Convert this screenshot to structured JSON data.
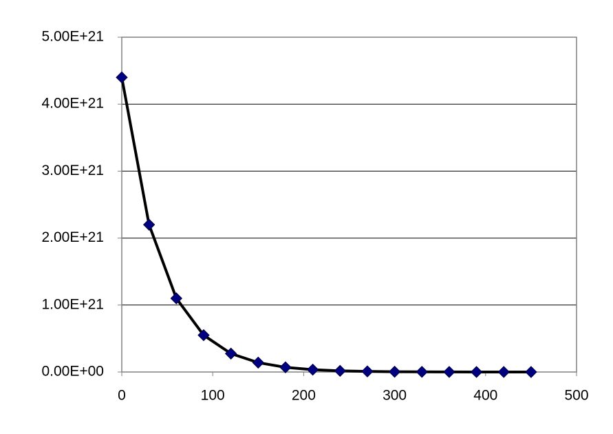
{
  "chart_data": {
    "type": "scatter",
    "x": [
      0,
      30,
      60,
      90,
      120,
      150,
      180,
      210,
      240,
      270,
      300,
      330,
      360,
      390,
      420,
      450
    ],
    "series": [
      {
        "color": "#000080",
        "line_color": "#000000",
        "values": [
          4.4e+21,
          2.2e+21,
          1.1e+21,
          5.5e+20,
          2.75e+20,
          1.4e+20,
          7e+19,
          3.5e+19,
          1.7e+19,
          9e+18,
          4e+18,
          2e+18,
          1e+18,
          5e+17,
          3e+17,
          1e+17
        ]
      }
    ],
    "xlim": [
      0,
      500
    ],
    "xticks": [
      0,
      100,
      200,
      300,
      400,
      500
    ],
    "ylim": [
      0,
      5e+21
    ],
    "yticks": [
      {
        "value": 0,
        "label": "0.00E+00"
      },
      {
        "value": 1e+21,
        "label": "1.00E+21"
      },
      {
        "value": 2e+21,
        "label": "2.00E+21"
      },
      {
        "value": 3e+21,
        "label": "3.00E+21"
      },
      {
        "value": 4e+21,
        "label": "4.00E+21"
      },
      {
        "value": 5e+21,
        "label": "5.00E+21"
      }
    ],
    "grid": true
  }
}
